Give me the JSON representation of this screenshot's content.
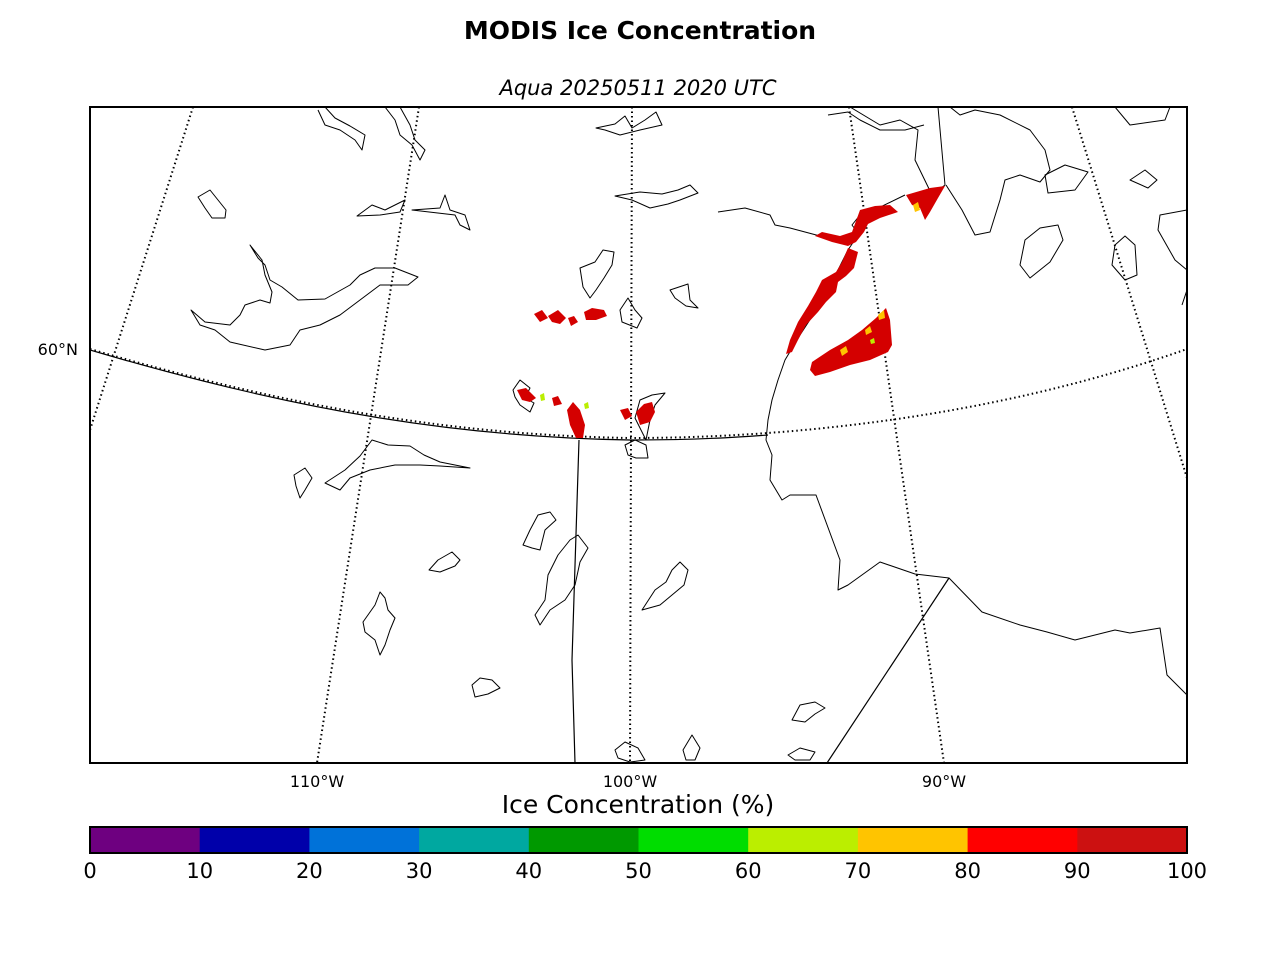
{
  "header": {
    "title": "MODIS Ice Concentration",
    "subtitle": "Aqua 20250511 2020 UTC"
  },
  "map": {
    "lat_labels": [
      "60°N"
    ],
    "lon_labels": [
      "110°W",
      "100°W",
      "90°W"
    ]
  },
  "colorbar": {
    "label": "Ice Concentration (%)",
    "range": [
      0,
      100
    ],
    "ticks": [
      "0",
      "10",
      "20",
      "30",
      "40",
      "50",
      "60",
      "70",
      "80",
      "90",
      "100"
    ],
    "colors": [
      "#6e0080",
      "#0000aa",
      "#0072d9",
      "#00a8a0",
      "#009900",
      "#00dd00",
      "#bbee00",
      "#ffc400",
      "#ff0000",
      "#cc1111"
    ]
  },
  "colors": {
    "ice_high": "#d40000",
    "ice_mid": "#ffc400",
    "ice_low": "#bbee00"
  }
}
